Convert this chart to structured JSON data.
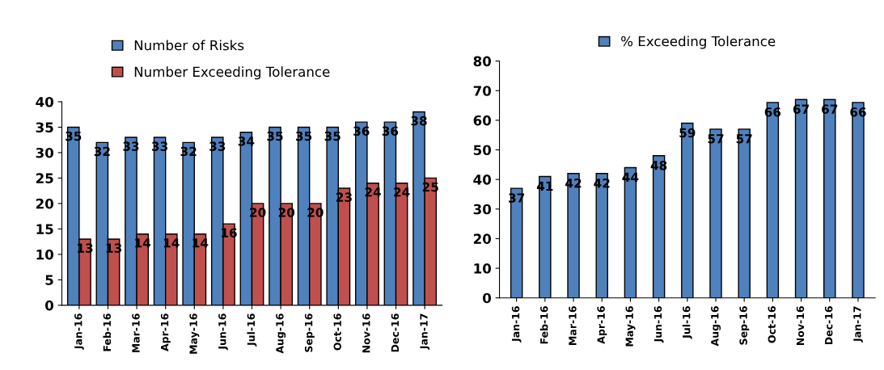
{
  "chart_data": [
    {
      "type": "bar",
      "categories": [
        "Jan-16",
        "Feb-16",
        "Mar-16",
        "Apr-16",
        "May-16",
        "Jun-16",
        "Jul-16",
        "Aug-16",
        "Sep-16",
        "Oct-16",
        "Nov-16",
        "Dec-16",
        "Jan-17"
      ],
      "series": [
        {
          "name": "Number of Risks",
          "color": "#4f81bd",
          "values": [
            35,
            32,
            33,
            33,
            32,
            33,
            34,
            35,
            35,
            35,
            36,
            36,
            38
          ]
        },
        {
          "name": "Number Exceeding Tolerance",
          "color": "#c0504d",
          "values": [
            13,
            13,
            14,
            14,
            14,
            16,
            20,
            20,
            20,
            23,
            24,
            24,
            25
          ]
        }
      ],
      "ylim": [
        0,
        40
      ],
      "yticks": [
        0,
        5,
        10,
        15,
        20,
        25,
        30,
        35,
        40
      ],
      "data_labels": true,
      "legend": "top",
      "grid": false
    },
    {
      "type": "bar",
      "categories": [
        "Jan-16",
        "Feb-16",
        "Mar-16",
        "Apr-16",
        "May-16",
        "Jun-16",
        "Jul-16",
        "Aug-16",
        "Sep-16",
        "Oct-16",
        "Nov-16",
        "Dec-16",
        "Jan-17"
      ],
      "series": [
        {
          "name": "% Exceeding Tolerance",
          "color": "#4f81bd",
          "values": [
            37,
            41,
            42,
            42,
            44,
            48,
            59,
            57,
            57,
            66,
            67,
            67,
            66
          ]
        }
      ],
      "ylim": [
        0,
        80
      ],
      "yticks": [
        0,
        10,
        20,
        30,
        40,
        50,
        60,
        70,
        80
      ],
      "data_labels": true,
      "legend": "top",
      "grid": false
    }
  ]
}
